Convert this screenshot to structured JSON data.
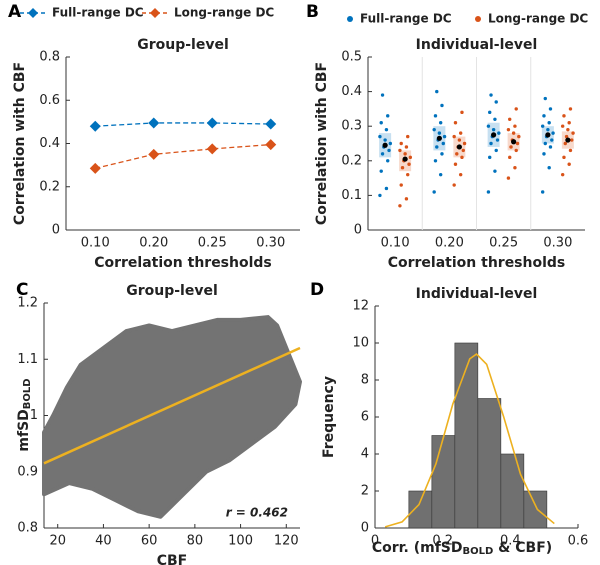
{
  "chart_data": [
    {
      "type": "line",
      "panel_label": "A",
      "title": "Group-level",
      "xlabel": "Correlation thresholds",
      "ylabel": "Correlation with CBF",
      "categories": [
        "0.10",
        "0.20",
        "0.25",
        "0.30"
      ],
      "ylim": [
        0,
        0.8
      ],
      "yticks": [
        0,
        0.2,
        0.4,
        0.6,
        0.8
      ],
      "legend": "top",
      "series": [
        {
          "name": "Full-range DC",
          "color": "#0072bd",
          "values": [
            0.48,
            0.495,
            0.495,
            0.49
          ]
        },
        {
          "name": "Long-range DC",
          "color": "#d95319",
          "values": [
            0.285,
            0.35,
            0.375,
            0.395
          ]
        }
      ]
    },
    {
      "type": "strip",
      "panel_label": "B",
      "title": "Individual-level",
      "xlabel": "Correlation thresholds",
      "ylabel": "Correlation with CBF",
      "categories": [
        "0.10",
        "0.20",
        "0.25",
        "0.30"
      ],
      "ylim": [
        0,
        0.5
      ],
      "yticks": [
        0,
        0.1,
        0.2,
        0.3,
        0.4,
        0.5
      ],
      "legend": "top",
      "grid": true,
      "series": [
        {
          "name": "Full-range DC",
          "color": "#0072bd",
          "values": [
            0.245,
            0.265,
            0.275,
            0.275
          ],
          "box_low": [
            0.21,
            0.23,
            0.24,
            0.25
          ],
          "box_high": [
            0.28,
            0.3,
            0.31,
            0.3
          ],
          "points": [
            [
              0.1,
              0.12,
              0.17,
              0.2,
              0.22,
              0.23,
              0.24,
              0.25,
              0.26,
              0.27,
              0.29,
              0.31,
              0.33,
              0.39
            ],
            [
              0.11,
              0.16,
              0.2,
              0.22,
              0.24,
              0.25,
              0.26,
              0.27,
              0.28,
              0.29,
              0.31,
              0.33,
              0.36,
              0.4
            ],
            [
              0.11,
              0.17,
              0.21,
              0.23,
              0.25,
              0.26,
              0.27,
              0.28,
              0.29,
              0.3,
              0.32,
              0.34,
              0.37,
              0.39
            ],
            [
              0.11,
              0.18,
              0.22,
              0.24,
              0.25,
              0.26,
              0.27,
              0.28,
              0.29,
              0.3,
              0.31,
              0.33,
              0.35,
              0.38
            ]
          ]
        },
        {
          "name": "Long-range DC",
          "color": "#d95319",
          "values": [
            0.205,
            0.24,
            0.255,
            0.26
          ],
          "box_low": [
            0.17,
            0.21,
            0.23,
            0.235
          ],
          "box_high": [
            0.23,
            0.27,
            0.28,
            0.285
          ],
          "points": [
            [
              0.07,
              0.09,
              0.13,
              0.16,
              0.18,
              0.19,
              0.2,
              0.21,
              0.22,
              0.23,
              0.24,
              0.25,
              0.27
            ],
            [
              0.13,
              0.16,
              0.19,
              0.21,
              0.22,
              0.23,
              0.24,
              0.25,
              0.26,
              0.27,
              0.28,
              0.31,
              0.34
            ],
            [
              0.15,
              0.18,
              0.21,
              0.23,
              0.24,
              0.25,
              0.26,
              0.27,
              0.28,
              0.29,
              0.3,
              0.32,
              0.35
            ],
            [
              0.16,
              0.19,
              0.21,
              0.23,
              0.25,
              0.26,
              0.27,
              0.28,
              0.29,
              0.3,
              0.31,
              0.33,
              0.35
            ]
          ]
        }
      ]
    },
    {
      "type": "scatter",
      "panel_label": "C",
      "title": "Group-level",
      "xlabel": "CBF",
      "ylabel": "mfSD",
      "ylabel_subscript": "BOLD",
      "annotation": "r = 0.462",
      "xlim": [
        14,
        126
      ],
      "xticks": [
        20,
        40,
        60,
        80,
        100,
        120
      ],
      "ylim": [
        0.8,
        1.2
      ],
      "yticks": [
        0.8,
        0.9,
        1,
        1.1,
        1.2
      ],
      "color": "#737373",
      "cloud": {
        "x": [
          14,
          14,
          18,
          24,
          30,
          40,
          50,
          60,
          70,
          80,
          90,
          100,
          112,
          116,
          120,
          126,
          124,
          115,
          105,
          95,
          85,
          75,
          65,
          55,
          45,
          35,
          25
        ],
        "y": [
          0.86,
          0.97,
          1.0,
          1.05,
          1.09,
          1.12,
          1.15,
          1.16,
          1.15,
          1.16,
          1.17,
          1.17,
          1.175,
          1.16,
          1.12,
          1.06,
          1.02,
          0.98,
          0.95,
          0.92,
          0.9,
          0.86,
          0.82,
          0.83,
          0.85,
          0.87,
          0.88
        ]
      },
      "fit": {
        "color": "#edb120",
        "x": [
          14,
          126
        ],
        "y": [
          0.915,
          1.12
        ]
      }
    },
    {
      "type": "histogram",
      "panel_label": "D",
      "title": "Individual-level",
      "xlabel": "Corr. (mfSD",
      "xlabel_subscript": "BOLD",
      "xlabel_end": " & CBF)",
      "ylabel": "Frequency",
      "xlim": [
        0,
        0.6
      ],
      "xticks": [
        0,
        0.2,
        0.4,
        0.6
      ],
      "ylim": [
        0,
        12
      ],
      "yticks": [
        0,
        2,
        4,
        6,
        8,
        10,
        12
      ],
      "color": "#707070",
      "bins": [
        0.1,
        0.168,
        0.236,
        0.304,
        0.372,
        0.44,
        0.508
      ],
      "counts": [
        2,
        5,
        10,
        7,
        4,
        2
      ],
      "fit": {
        "color": "#edb120",
        "x": [
          0.03,
          0.08,
          0.13,
          0.18,
          0.23,
          0.28,
          0.3,
          0.33,
          0.38,
          0.43,
          0.48,
          0.53
        ],
        "y": [
          0.06,
          0.33,
          1.27,
          3.46,
          6.7,
          9.14,
          9.4,
          8.85,
          6.03,
          2.91,
          1.0,
          0.24
        ]
      }
    }
  ]
}
